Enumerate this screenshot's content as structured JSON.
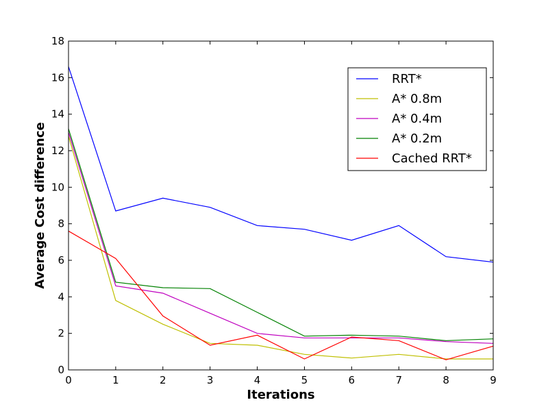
{
  "chart_data": {
    "type": "line",
    "title": "",
    "xlabel": "Iterations",
    "ylabel": "Average Cost difference",
    "xlim": [
      0,
      9
    ],
    "ylim": [
      0,
      18
    ],
    "xticks": [
      "0",
      "1",
      "2",
      "3",
      "4",
      "5",
      "6",
      "7",
      "8",
      "9"
    ],
    "yticks": [
      "0",
      "2",
      "4",
      "6",
      "8",
      "10",
      "12",
      "14",
      "16",
      "18"
    ],
    "grid": false,
    "legend_position": "upper-right",
    "x": [
      0,
      1,
      2,
      3,
      4,
      5,
      6,
      7,
      8,
      9
    ],
    "series": [
      {
        "name": "RRT*",
        "color": "#0000ff",
        "values": [
          16.6,
          8.7,
          9.4,
          8.9,
          7.9,
          7.7,
          7.1,
          7.9,
          6.2,
          5.9
        ]
      },
      {
        "name": "A* 0.8m",
        "color": "#bfbf00",
        "values": [
          12.8,
          3.8,
          2.5,
          1.45,
          1.35,
          0.85,
          0.65,
          0.85,
          0.6,
          0.6
        ]
      },
      {
        "name": "A* 0.4m",
        "color": "#bf00bf",
        "values": [
          13.0,
          4.6,
          4.2,
          3.1,
          2.0,
          1.75,
          1.75,
          1.75,
          1.55,
          1.45
        ]
      },
      {
        "name": "A* 0.2m",
        "color": "#008000",
        "values": [
          13.2,
          4.8,
          4.5,
          4.45,
          3.15,
          1.85,
          1.9,
          1.85,
          1.6,
          1.7
        ]
      },
      {
        "name": "Cached RRT*",
        "color": "#ff0000",
        "values": [
          7.6,
          6.1,
          2.95,
          1.35,
          1.9,
          0.6,
          1.8,
          1.6,
          0.55,
          1.3
        ]
      }
    ]
  }
}
